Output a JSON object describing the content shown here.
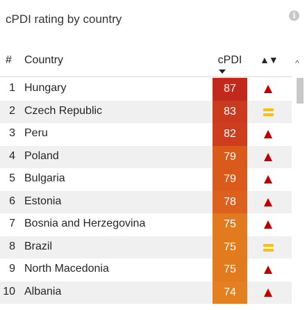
{
  "title": "cPDI rating by country",
  "info_icon": "info-icon",
  "columns": {
    "num": "#",
    "country": "Country",
    "cpdi": "cPDI",
    "trend": "▲▼"
  },
  "sort_indicator": "sort-descending-icon",
  "colors": {
    "high": "#c0291b",
    "mid_high": "#d4461a",
    "mid": "#e0721d",
    "low": "#e6801f",
    "up": "#c00000",
    "equal": "#ffc000"
  },
  "rows": [
    {
      "rank": "1",
      "country": "Hungary",
      "cpdi": "87",
      "trend": "up",
      "color": "#c0291b"
    },
    {
      "rank": "2",
      "country": "Czech Republic",
      "cpdi": "83",
      "trend": "equal",
      "color": "#ca3a1d"
    },
    {
      "rank": "3",
      "country": "Peru",
      "cpdi": "82",
      "trend": "up",
      "color": "#ce3e1e"
    },
    {
      "rank": "4",
      "country": "Poland",
      "cpdi": "79",
      "trend": "up",
      "color": "#da5a1b"
    },
    {
      "rank": "5",
      "country": "Bulgaria",
      "cpdi": "79",
      "trend": "up",
      "color": "#da5a1b"
    },
    {
      "rank": "6",
      "country": "Estonia",
      "cpdi": "78",
      "trend": "up",
      "color": "#dc611c"
    },
    {
      "rank": "7",
      "country": "Bosnia and Herzegovina",
      "cpdi": "75",
      "trend": "up",
      "color": "#e27a1e"
    },
    {
      "rank": "8",
      "country": "Brazil",
      "cpdi": "75",
      "trend": "equal",
      "color": "#e27a1e"
    },
    {
      "rank": "9",
      "country": "North Macedonia",
      "cpdi": "75",
      "trend": "up",
      "color": "#e27a1e"
    },
    {
      "rank": "10",
      "country": "Albania",
      "cpdi": "74",
      "trend": "up",
      "color": "#e4801f"
    }
  ]
}
